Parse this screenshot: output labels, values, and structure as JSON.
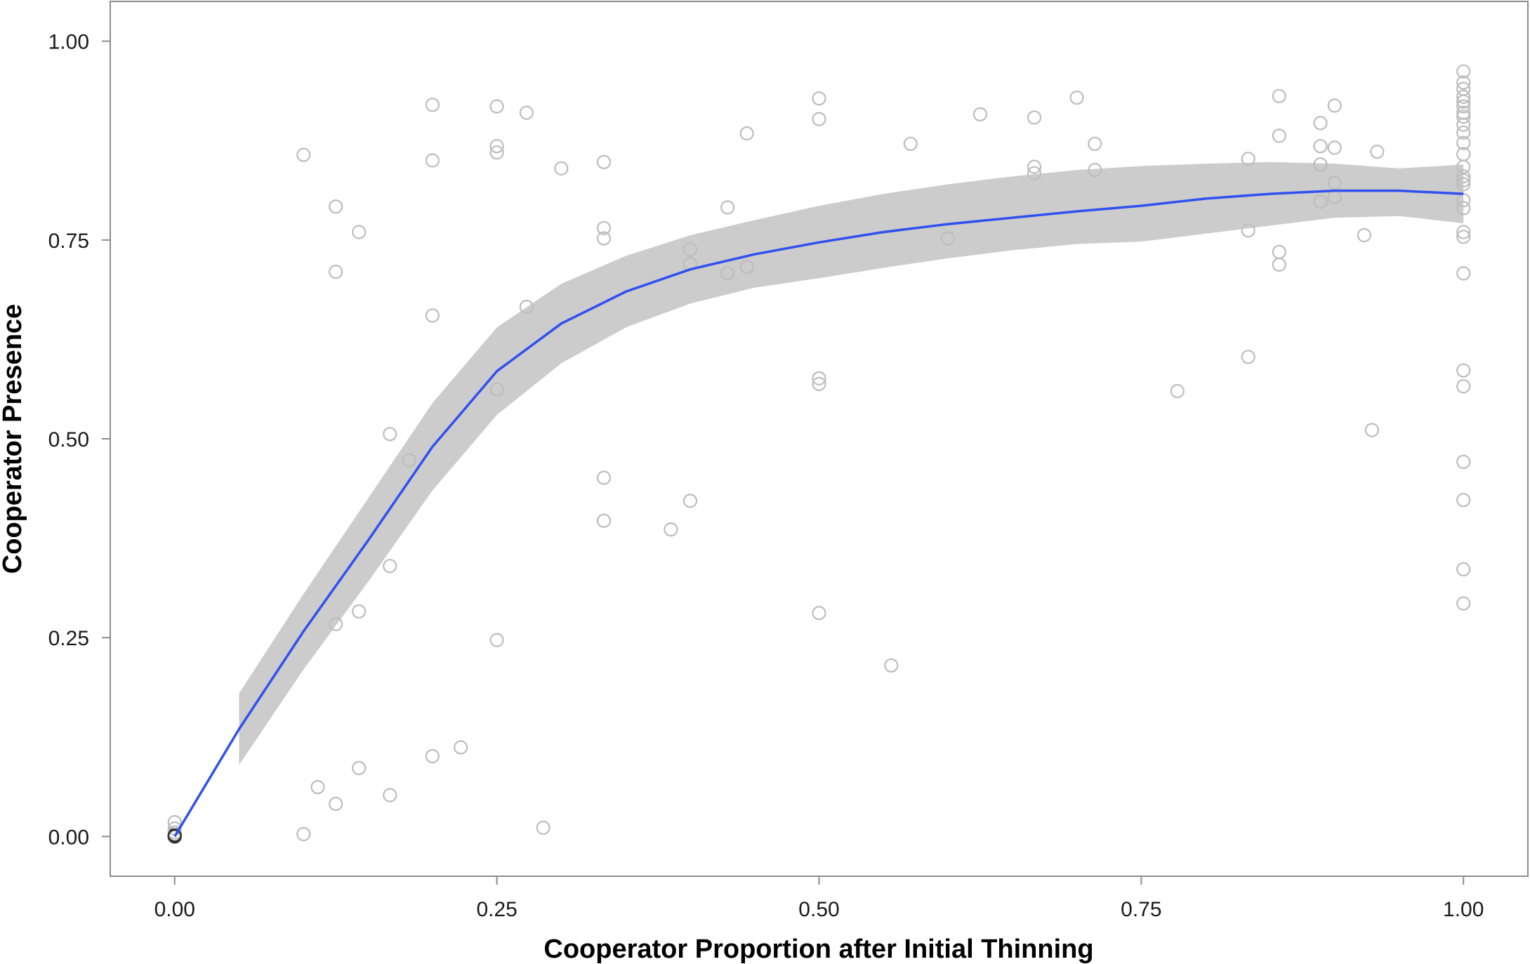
{
  "chart_data": {
    "type": "scatter",
    "xlabel": "Cooperator Proportion after Initial Thinning",
    "ylabel": "Cooperator Presence",
    "xlim": [
      -0.05,
      1.05
    ],
    "ylim": [
      -0.05,
      1.05
    ],
    "x_ticks": [
      "0.00",
      "0.25",
      "0.50",
      "0.75",
      "1.00"
    ],
    "y_ticks": [
      "0.00",
      "0.25",
      "0.50",
      "0.75",
      "1.00"
    ],
    "x_tick_values": [
      0,
      0.25,
      0.5,
      0.75,
      1.0
    ],
    "y_tick_values": [
      0,
      0.25,
      0.5,
      0.75,
      1.0
    ],
    "grid": false,
    "legend": "none",
    "colors": {
      "points": "#bdbdbd",
      "points_dark": "#333333",
      "fit_line": "#3050f0",
      "ribbon": "#cccccc",
      "panel_border": "#8c8c8c"
    },
    "points": [
      [
        0.0,
        0.0
      ],
      [
        0.0,
        0.002
      ],
      [
        0.0,
        0.005
      ],
      [
        0.0,
        0.01
      ],
      [
        0.0,
        0.018
      ],
      [
        0.0,
        0.0
      ],
      [
        0.0,
        0.001
      ],
      [
        0.1,
        0.857
      ],
      [
        0.1,
        0.003
      ],
      [
        0.111,
        0.062
      ],
      [
        0.125,
        0.792
      ],
      [
        0.125,
        0.71
      ],
      [
        0.125,
        0.267
      ],
      [
        0.125,
        0.041
      ],
      [
        0.143,
        0.76
      ],
      [
        0.143,
        0.283
      ],
      [
        0.143,
        0.086
      ],
      [
        0.167,
        0.506
      ],
      [
        0.167,
        0.34
      ],
      [
        0.167,
        0.052
      ],
      [
        0.182,
        0.473
      ],
      [
        0.2,
        0.92
      ],
      [
        0.2,
        0.85
      ],
      [
        0.2,
        0.655
      ],
      [
        0.2,
        0.101
      ],
      [
        0.222,
        0.112
      ],
      [
        0.25,
        0.918
      ],
      [
        0.25,
        0.868
      ],
      [
        0.25,
        0.86
      ],
      [
        0.25,
        0.562
      ],
      [
        0.25,
        0.247
      ],
      [
        0.273,
        0.91
      ],
      [
        0.273,
        0.666
      ],
      [
        0.286,
        0.011
      ],
      [
        0.3,
        0.84
      ],
      [
        0.333,
        0.848
      ],
      [
        0.333,
        0.765
      ],
      [
        0.333,
        0.752
      ],
      [
        0.333,
        0.451
      ],
      [
        0.333,
        0.397
      ],
      [
        0.385,
        0.386
      ],
      [
        0.4,
        0.738
      ],
      [
        0.4,
        0.72
      ],
      [
        0.4,
        0.422
      ],
      [
        0.429,
        0.791
      ],
      [
        0.429,
        0.708
      ],
      [
        0.444,
        0.884
      ],
      [
        0.444,
        0.716
      ],
      [
        0.5,
        0.928
      ],
      [
        0.5,
        0.902
      ],
      [
        0.5,
        0.576
      ],
      [
        0.5,
        0.569
      ],
      [
        0.5,
        0.281
      ],
      [
        0.556,
        0.215
      ],
      [
        0.571,
        0.871
      ],
      [
        0.6,
        0.752
      ],
      [
        0.625,
        0.908
      ],
      [
        0.667,
        0.904
      ],
      [
        0.667,
        0.842
      ],
      [
        0.667,
        0.834
      ],
      [
        0.7,
        0.929
      ],
      [
        0.714,
        0.871
      ],
      [
        0.714,
        0.838
      ],
      [
        0.778,
        0.56
      ],
      [
        0.833,
        0.852
      ],
      [
        0.833,
        0.762
      ],
      [
        0.833,
        0.603
      ],
      [
        0.857,
        0.931
      ],
      [
        0.857,
        0.881
      ],
      [
        0.857,
        0.735
      ],
      [
        0.857,
        0.719
      ],
      [
        0.889,
        0.897
      ],
      [
        0.889,
        0.868
      ],
      [
        0.889,
        0.845
      ],
      [
        0.889,
        0.798
      ],
      [
        0.9,
        0.919
      ],
      [
        0.9,
        0.866
      ],
      [
        0.9,
        0.822
      ],
      [
        0.9,
        0.804
      ],
      [
        0.923,
        0.756
      ],
      [
        0.929,
        0.511
      ],
      [
        0.933,
        0.861
      ],
      [
        1.0,
        0.962
      ],
      [
        1.0,
        0.948
      ],
      [
        1.0,
        0.94
      ],
      [
        1.0,
        0.93
      ],
      [
        1.0,
        0.924
      ],
      [
        1.0,
        0.918
      ],
      [
        1.0,
        0.91
      ],
      [
        1.0,
        0.905
      ],
      [
        1.0,
        0.895
      ],
      [
        1.0,
        0.885
      ],
      [
        1.0,
        0.872
      ],
      [
        1.0,
        0.858
      ],
      [
        1.0,
        0.842
      ],
      [
        1.0,
        0.83
      ],
      [
        1.0,
        0.825
      ],
      [
        1.0,
        0.82
      ],
      [
        1.0,
        0.8
      ],
      [
        1.0,
        0.79
      ],
      [
        1.0,
        0.76
      ],
      [
        1.0,
        0.754
      ],
      [
        1.0,
        0.708
      ],
      [
        1.0,
        0.586
      ],
      [
        1.0,
        0.566
      ],
      [
        1.0,
        0.471
      ],
      [
        1.0,
        0.423
      ],
      [
        1.0,
        0.336
      ],
      [
        1.0,
        0.293
      ]
    ],
    "fit_line": {
      "x": [
        0.0,
        0.05,
        0.1,
        0.15,
        0.2,
        0.25,
        0.3,
        0.35,
        0.4,
        0.45,
        0.5,
        0.55,
        0.6,
        0.65,
        0.7,
        0.75,
        0.8,
        0.85,
        0.9,
        0.95,
        1.0
      ],
      "y": [
        0.0,
        0.135,
        0.258,
        0.372,
        0.49,
        0.585,
        0.645,
        0.685,
        0.713,
        0.732,
        0.747,
        0.76,
        0.77,
        0.778,
        0.786,
        0.793,
        0.802,
        0.808,
        0.812,
        0.812,
        0.808
      ],
      "ymin": [
        null,
        0.09,
        0.21,
        0.32,
        0.435,
        0.53,
        0.595,
        0.64,
        0.67,
        0.69,
        0.702,
        0.715,
        0.727,
        0.737,
        0.745,
        0.748,
        0.758,
        0.768,
        0.778,
        0.78,
        0.771
      ],
      "ymax": [
        null,
        0.18,
        0.305,
        0.425,
        0.545,
        0.64,
        0.695,
        0.73,
        0.756,
        0.775,
        0.793,
        0.808,
        0.82,
        0.83,
        0.838,
        0.843,
        0.846,
        0.848,
        0.846,
        0.84,
        0.845
      ]
    }
  }
}
